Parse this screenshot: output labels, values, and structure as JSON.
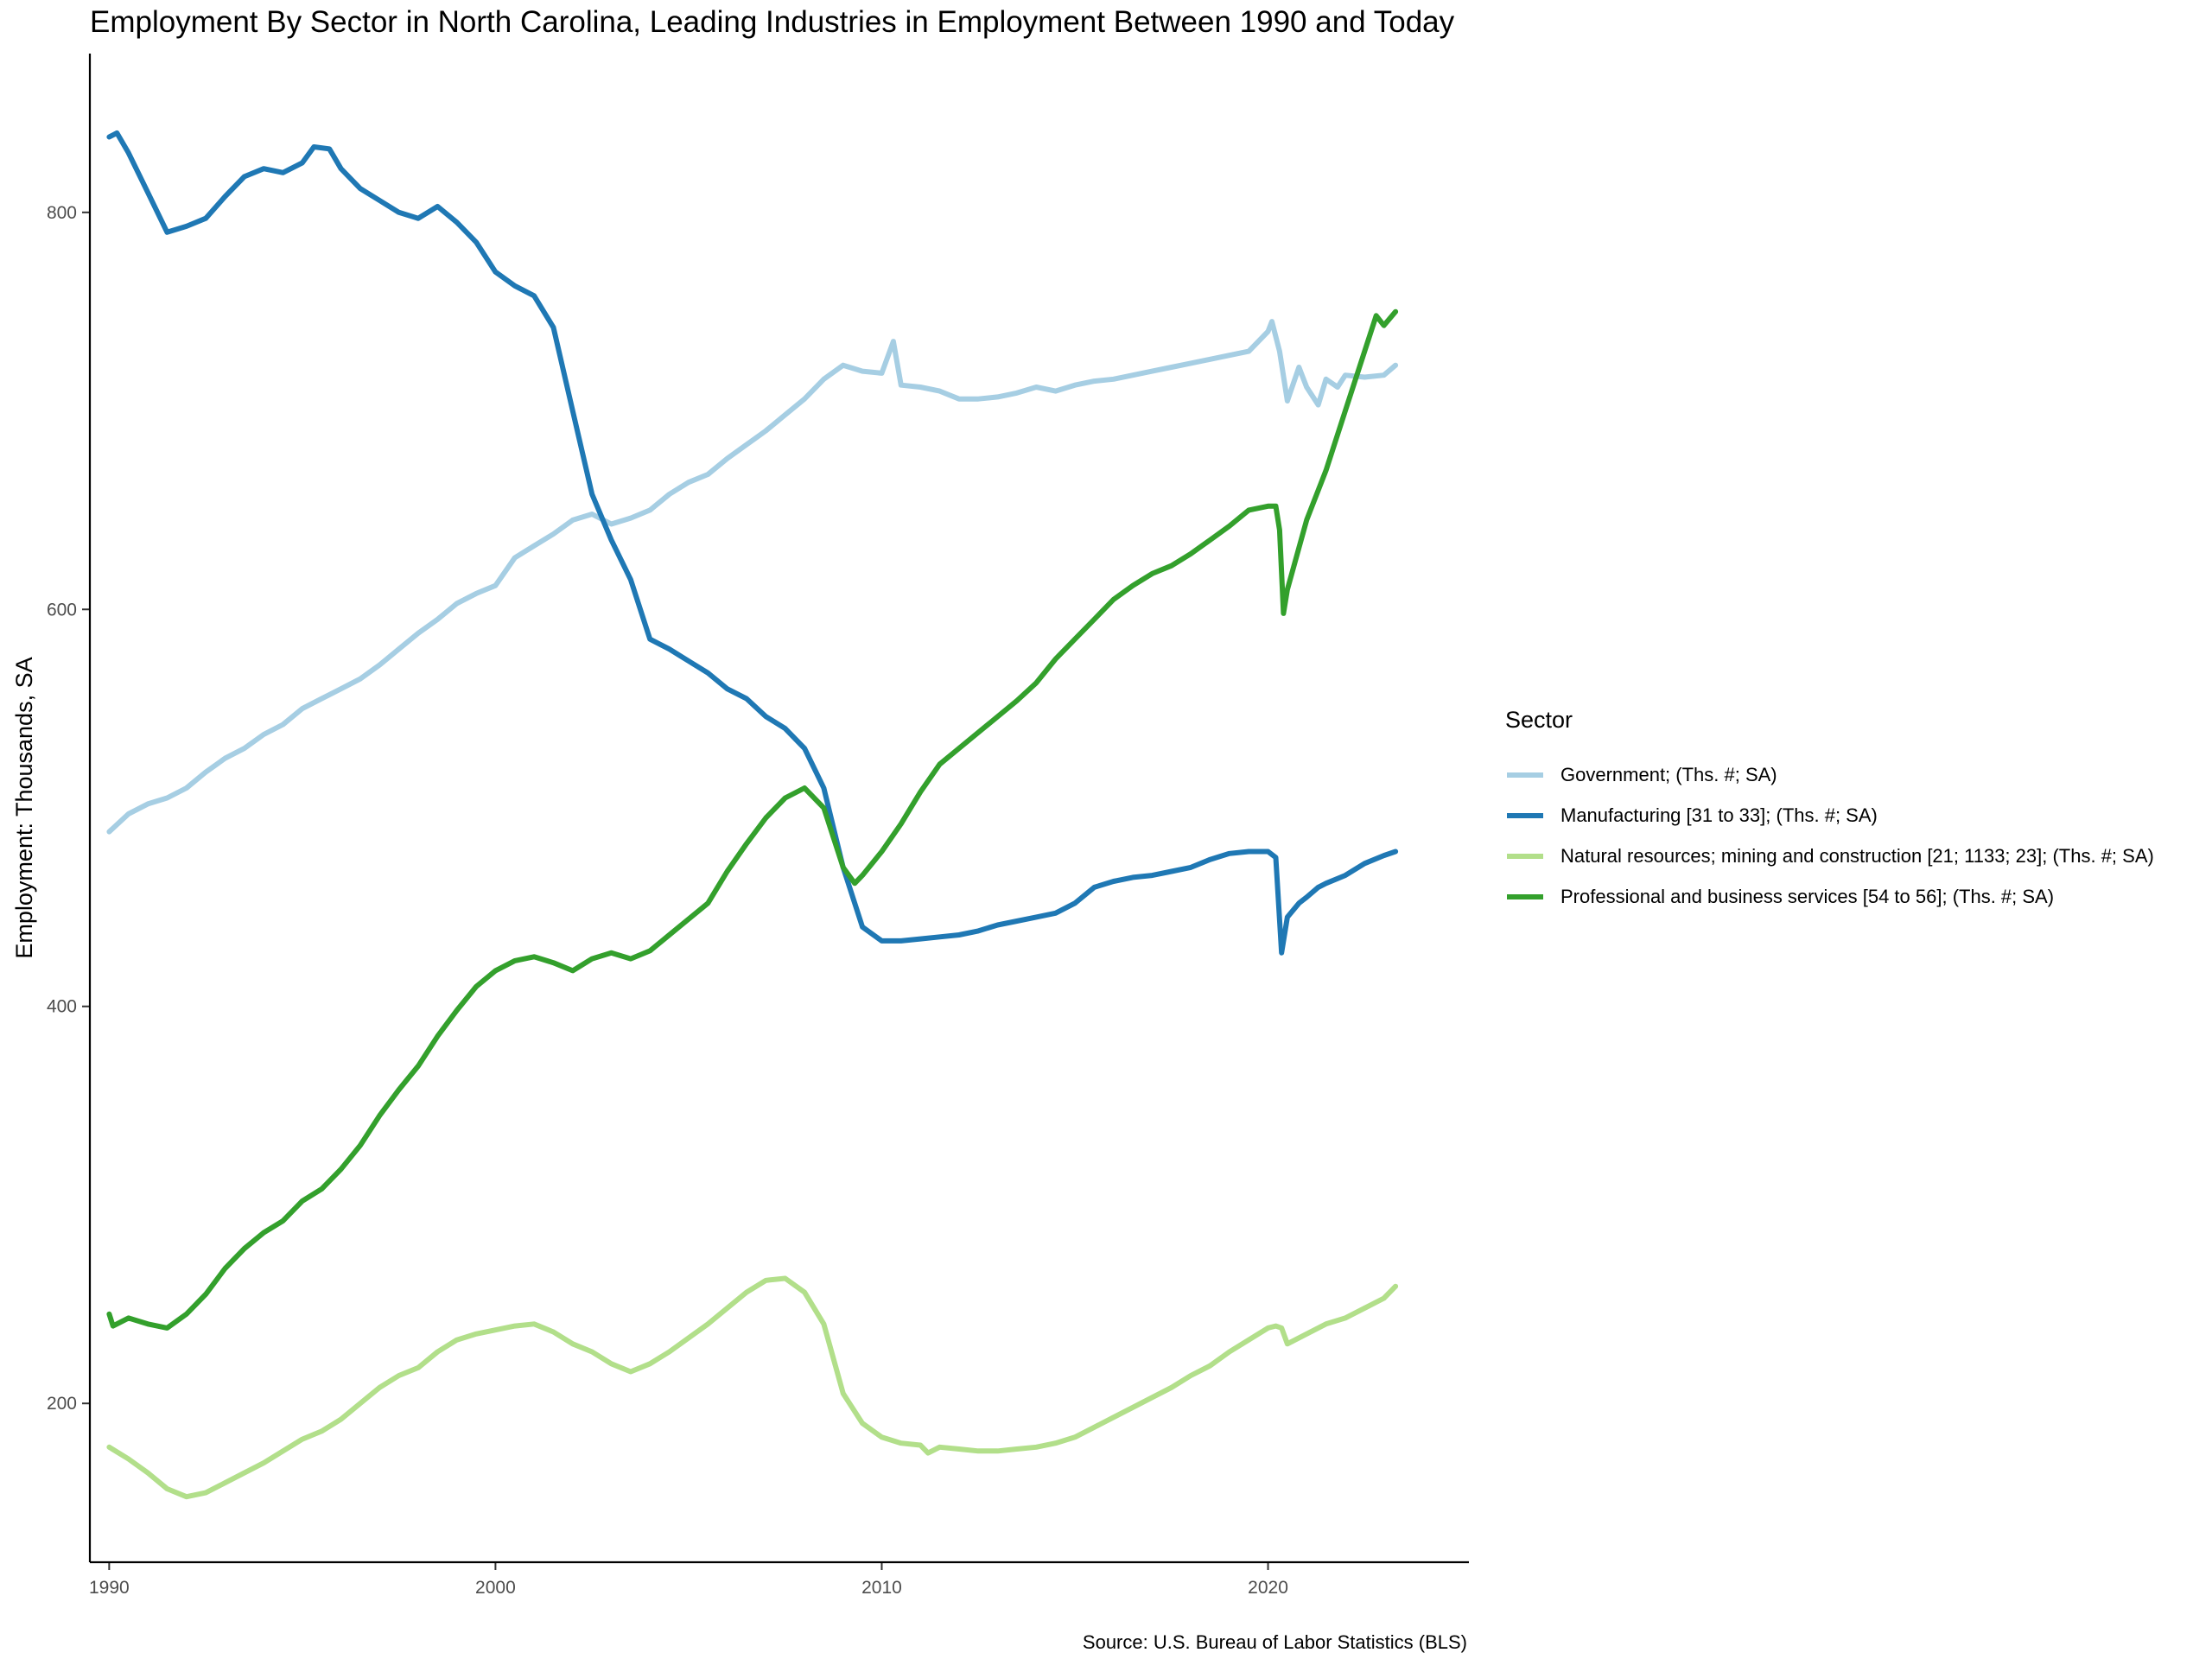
{
  "chart_data": {
    "type": "line",
    "title": "Employment By Sector in North Carolina, Leading Industries in Employment Between 1990 and Today",
    "xlabel": "",
    "ylabel": "Employment: Thousands, SA",
    "caption": "Source: U.S. Bureau of Labor Statistics (BLS)",
    "legend_title": "Sector",
    "legend_position": "right",
    "grid": false,
    "xlim": [
      1989.5,
      2025.2
    ],
    "ylim": [
      120,
      880
    ],
    "x_ticks": [
      1990,
      2000,
      2010,
      2020
    ],
    "x_tick_labels": [
      "1990",
      "2000",
      "2010",
      "2020"
    ],
    "y_ticks": [
      200,
      400,
      600,
      800
    ],
    "y_tick_labels": [
      "200",
      "400",
      "600",
      "800"
    ],
    "series": [
      {
        "name": "Government; (Ths. #; SA)",
        "color": "#a6cee3",
        "x": [
          1990.0,
          1990.5,
          1991.0,
          1991.5,
          1992.0,
          1992.5,
          1993.0,
          1993.5,
          1994.0,
          1994.5,
          1995.0,
          1995.5,
          1996.0,
          1996.5,
          1997.0,
          1997.5,
          1998.0,
          1998.5,
          1999.0,
          1999.5,
          2000.0,
          2000.5,
          2001.0,
          2001.5,
          2002.0,
          2002.5,
          2003.0,
          2003.5,
          2004.0,
          2004.5,
          2005.0,
          2005.5,
          2006.0,
          2006.5,
          2007.0,
          2007.5,
          2008.0,
          2008.5,
          2009.0,
          2009.5,
          2010.0,
          2010.3,
          2010.5,
          2011.0,
          2011.5,
          2012.0,
          2012.5,
          2013.0,
          2013.5,
          2014.0,
          2014.5,
          2015.0,
          2015.5,
          2016.0,
          2016.5,
          2017.0,
          2017.5,
          2018.0,
          2018.5,
          2019.0,
          2019.5,
          2020.0,
          2020.1,
          2020.3,
          2020.5,
          2020.8,
          2021.0,
          2021.3,
          2021.5,
          2021.8,
          2022.0,
          2022.5,
          2023.0,
          2023.3
        ],
        "values": [
          488,
          497,
          502,
          505,
          510,
          518,
          525,
          530,
          537,
          542,
          550,
          555,
          560,
          565,
          572,
          580,
          588,
          595,
          603,
          608,
          612,
          626,
          632,
          638,
          645,
          648,
          643,
          646,
          650,
          658,
          664,
          668,
          676,
          683,
          690,
          698,
          706,
          716,
          723,
          720,
          719,
          735,
          713,
          712,
          710,
          706,
          706,
          707,
          709,
          712,
          710,
          713,
          715,
          716,
          718,
          720,
          722,
          724,
          726,
          728,
          730,
          740,
          745,
          730,
          705,
          722,
          712,
          703,
          716,
          712,
          718,
          717,
          718,
          723
        ]
      },
      {
        "name": "Manufacturing [31 to 33]; (Ths. #; SA)",
        "color": "#1f78b4",
        "x": [
          1990.0,
          1990.2,
          1990.5,
          1991.0,
          1991.5,
          1992.0,
          1992.5,
          1993.0,
          1993.5,
          1994.0,
          1994.5,
          1995.0,
          1995.3,
          1995.7,
          1996.0,
          1996.5,
          1997.0,
          1997.5,
          1998.0,
          1998.5,
          1999.0,
          1999.5,
          2000.0,
          2000.5,
          2001.0,
          2001.5,
          2002.0,
          2002.5,
          2003.0,
          2003.5,
          2004.0,
          2004.5,
          2005.0,
          2005.5,
          2006.0,
          2006.5,
          2007.0,
          2007.5,
          2008.0,
          2008.5,
          2009.0,
          2009.5,
          2010.0,
          2010.5,
          2011.0,
          2011.5,
          2012.0,
          2012.5,
          2013.0,
          2013.5,
          2014.0,
          2014.5,
          2015.0,
          2015.5,
          2016.0,
          2016.5,
          2017.0,
          2017.5,
          2018.0,
          2018.5,
          2019.0,
          2019.5,
          2020.0,
          2020.2,
          2020.35,
          2020.5,
          2020.8,
          2021.0,
          2021.3,
          2021.5,
          2022.0,
          2022.5,
          2023.0,
          2023.3
        ],
        "values": [
          838,
          840,
          830,
          810,
          790,
          793,
          797,
          808,
          818,
          822,
          820,
          825,
          833,
          832,
          822,
          812,
          806,
          800,
          797,
          803,
          795,
          785,
          770,
          763,
          758,
          742,
          700,
          658,
          635,
          615,
          585,
          580,
          574,
          568,
          560,
          555,
          546,
          540,
          530,
          510,
          470,
          440,
          433,
          433,
          434,
          435,
          436,
          438,
          441,
          443,
          445,
          447,
          452,
          460,
          463,
          465,
          466,
          468,
          470,
          474,
          477,
          478,
          478,
          475,
          427,
          445,
          452,
          455,
          460,
          462,
          466,
          472,
          476,
          478
        ]
      },
      {
        "name": "Natural resources; mining and construction [21; 1133; 23]; (Ths. #; SA)",
        "color": "#b2df8a",
        "x": [
          1990.0,
          1990.5,
          1991.0,
          1991.5,
          1992.0,
          1992.5,
          1993.0,
          1993.5,
          1994.0,
          1994.5,
          1995.0,
          1995.5,
          1996.0,
          1996.5,
          1997.0,
          1997.5,
          1998.0,
          1998.5,
          1999.0,
          1999.5,
          2000.0,
          2000.5,
          2001.0,
          2001.5,
          2002.0,
          2002.5,
          2003.0,
          2003.5,
          2004.0,
          2004.5,
          2005.0,
          2005.5,
          2006.0,
          2006.5,
          2007.0,
          2007.5,
          2008.0,
          2008.5,
          2009.0,
          2009.5,
          2010.0,
          2010.5,
          2011.0,
          2011.2,
          2011.5,
          2012.0,
          2012.5,
          2013.0,
          2013.5,
          2014.0,
          2014.5,
          2015.0,
          2015.5,
          2016.0,
          2016.5,
          2017.0,
          2017.5,
          2018.0,
          2018.5,
          2019.0,
          2019.5,
          2020.0,
          2020.2,
          2020.35,
          2020.5,
          2021.0,
          2021.5,
          2022.0,
          2022.5,
          2023.0,
          2023.3
        ],
        "values": [
          178,
          172,
          165,
          157,
          153,
          155,
          160,
          165,
          170,
          176,
          182,
          186,
          192,
          200,
          208,
          214,
          218,
          226,
          232,
          235,
          237,
          239,
          240,
          236,
          230,
          226,
          220,
          216,
          220,
          226,
          233,
          240,
          248,
          256,
          262,
          263,
          256,
          240,
          205,
          190,
          183,
          180,
          179,
          175,
          178,
          177,
          176,
          176,
          177,
          178,
          180,
          183,
          188,
          193,
          198,
          203,
          208,
          214,
          219,
          226,
          232,
          238,
          239,
          238,
          230,
          235,
          240,
          243,
          248,
          253,
          259
        ]
      },
      {
        "name": "Professional and business services [54 to 56]; (Ths. #; SA)",
        "color": "#33a02c",
        "x": [
          1990.0,
          1990.1,
          1990.5,
          1991.0,
          1991.5,
          1992.0,
          1992.5,
          1993.0,
          1993.5,
          1994.0,
          1994.5,
          1995.0,
          1995.5,
          1996.0,
          1996.5,
          1997.0,
          1997.5,
          1998.0,
          1998.5,
          1999.0,
          1999.5,
          2000.0,
          2000.5,
          2001.0,
          2001.5,
          2002.0,
          2002.5,
          2003.0,
          2003.5,
          2004.0,
          2004.5,
          2005.0,
          2005.5,
          2006.0,
          2006.5,
          2007.0,
          2007.5,
          2008.0,
          2008.5,
          2009.0,
          2009.3,
          2009.5,
          2010.0,
          2010.5,
          2011.0,
          2011.5,
          2012.0,
          2012.5,
          2013.0,
          2013.5,
          2014.0,
          2014.5,
          2015.0,
          2015.5,
          2016.0,
          2016.5,
          2017.0,
          2017.5,
          2018.0,
          2018.5,
          2019.0,
          2019.5,
          2020.0,
          2020.2,
          2020.3,
          2020.4,
          2020.5,
          2021.0,
          2021.5,
          2022.0,
          2022.5,
          2022.8,
          2023.0,
          2023.3
        ],
        "values": [
          245,
          239,
          243,
          240,
          238,
          245,
          255,
          268,
          278,
          286,
          292,
          302,
          308,
          318,
          330,
          345,
          358,
          370,
          385,
          398,
          410,
          418,
          423,
          425,
          422,
          418,
          424,
          427,
          424,
          428,
          436,
          444,
          452,
          468,
          482,
          495,
          505,
          510,
          500,
          470,
          462,
          466,
          478,
          492,
          508,
          522,
          530,
          538,
          546,
          554,
          563,
          575,
          585,
          595,
          605,
          612,
          618,
          622,
          628,
          635,
          642,
          650,
          652,
          652,
          640,
          598,
          610,
          645,
          670,
          700,
          730,
          748,
          743,
          750
        ]
      }
    ]
  }
}
